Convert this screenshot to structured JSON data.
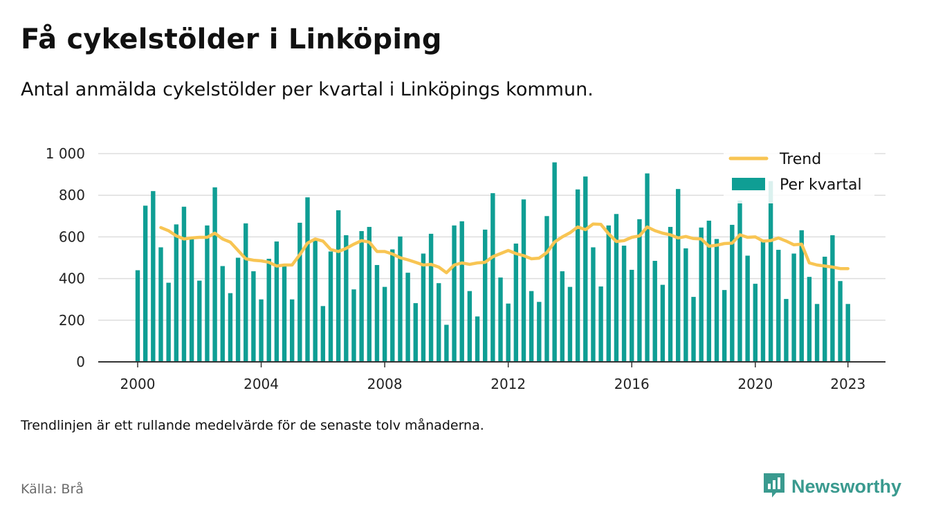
{
  "title": "Få cykelstölder i Linköping",
  "subtitle": "Antal anmälda cykelstölder per kvartal i Linköpings kommun.",
  "note": "Trendlinjen är ett rullande medelvärde för de senaste tolv månaderna.",
  "source": "Källa: Brå",
  "brand": {
    "name": "Newsworthy",
    "icon": "newsworthy-logo-icon",
    "color": "#3a9a8f"
  },
  "colors": {
    "bars": "#0f9e94",
    "trend": "#f8c553",
    "grid": "#dddddd",
    "axis": "#333333"
  },
  "chart_data": {
    "type": "bar",
    "title": "Få cykelstölder i Linköping",
    "subtitle": "Antal anmälda cykelstölder per kvartal i Linköpings kommun.",
    "xlabel": "",
    "ylabel": "",
    "ylim": [
      0,
      1000
    ],
    "y_ticks": [
      0,
      200,
      400,
      600,
      800,
      1000
    ],
    "y_tick_labels": [
      "0",
      "200",
      "400",
      "600",
      "800",
      "1 000"
    ],
    "x_ticks": [
      "2000",
      "2004",
      "2008",
      "2012",
      "2016",
      "2020",
      "2023"
    ],
    "grid": true,
    "legend_position": "top-right",
    "x": [
      "2000-Q1",
      "2000-Q2",
      "2000-Q3",
      "2000-Q4",
      "2001-Q1",
      "2001-Q2",
      "2001-Q3",
      "2001-Q4",
      "2002-Q1",
      "2002-Q2",
      "2002-Q3",
      "2002-Q4",
      "2003-Q1",
      "2003-Q2",
      "2003-Q3",
      "2003-Q4",
      "2004-Q1",
      "2004-Q2",
      "2004-Q3",
      "2004-Q4",
      "2005-Q1",
      "2005-Q2",
      "2005-Q3",
      "2005-Q4",
      "2006-Q1",
      "2006-Q2",
      "2006-Q3",
      "2006-Q4",
      "2007-Q1",
      "2007-Q2",
      "2007-Q3",
      "2007-Q4",
      "2008-Q1",
      "2008-Q2",
      "2008-Q3",
      "2008-Q4",
      "2009-Q1",
      "2009-Q2",
      "2009-Q3",
      "2009-Q4",
      "2010-Q1",
      "2010-Q2",
      "2010-Q3",
      "2010-Q4",
      "2011-Q1",
      "2011-Q2",
      "2011-Q3",
      "2011-Q4",
      "2012-Q1",
      "2012-Q2",
      "2012-Q3",
      "2012-Q4",
      "2013-Q1",
      "2013-Q2",
      "2013-Q3",
      "2013-Q4",
      "2014-Q1",
      "2014-Q2",
      "2014-Q3",
      "2014-Q4",
      "2015-Q1",
      "2015-Q2",
      "2015-Q3",
      "2015-Q4",
      "2016-Q1",
      "2016-Q2",
      "2016-Q3",
      "2016-Q4",
      "2017-Q1",
      "2017-Q2",
      "2017-Q3",
      "2017-Q4",
      "2018-Q1",
      "2018-Q2",
      "2018-Q3",
      "2018-Q4",
      "2019-Q1",
      "2019-Q2",
      "2019-Q3",
      "2019-Q4",
      "2020-Q1",
      "2020-Q2",
      "2020-Q3",
      "2020-Q4",
      "2021-Q1",
      "2021-Q2",
      "2021-Q3",
      "2021-Q4",
      "2022-Q1",
      "2022-Q2",
      "2022-Q3",
      "2022-Q4",
      "2023-Q1"
    ],
    "series": [
      {
        "name": "Per kvartal",
        "type": "bar",
        "values": [
          440,
          750,
          820,
          550,
          380,
          660,
          745,
          590,
          390,
          655,
          838,
          460,
          330,
          500,
          665,
          435,
          300,
          495,
          578,
          470,
          300,
          668,
          790,
          590,
          268,
          530,
          728,
          608,
          348,
          628,
          648,
          465,
          360,
          540,
          602,
          428,
          282,
          520,
          615,
          378,
          178,
          655,
          675,
          340,
          218,
          635,
          810,
          405,
          280,
          568,
          780,
          340,
          288,
          700,
          958,
          435,
          360,
          828,
          890,
          550,
          362,
          655,
          710,
          558,
          442,
          685,
          905,
          485,
          370,
          648,
          830,
          545,
          312,
          645,
          678,
          590,
          345,
          658,
          775,
          510,
          375,
          580,
          868,
          538,
          302,
          520,
          632,
          408,
          278,
          505,
          608,
          388,
          278
        ]
      },
      {
        "name": "Trend",
        "type": "line",
        "values": [
          null,
          null,
          null,
          645,
          630,
          605,
          590,
          595,
          598,
          598,
          618,
          590,
          575,
          535,
          495,
          488,
          485,
          478,
          460,
          465,
          465,
          515,
          570,
          590,
          580,
          540,
          530,
          545,
          565,
          582,
          575,
          530,
          530,
          518,
          500,
          490,
          478,
          465,
          468,
          455,
          428,
          465,
          475,
          468,
          475,
          478,
          505,
          520,
          535,
          520,
          510,
          495,
          498,
          525,
          575,
          600,
          620,
          648,
          635,
          662,
          660,
          615,
          578,
          582,
          598,
          605,
          648,
          630,
          618,
          610,
          595,
          602,
          592,
          590,
          555,
          560,
          568,
          570,
          610,
          598,
          600,
          580,
          582,
          595,
          580,
          562,
          565,
          475,
          465,
          460,
          455,
          448,
          448
        ]
      }
    ]
  }
}
